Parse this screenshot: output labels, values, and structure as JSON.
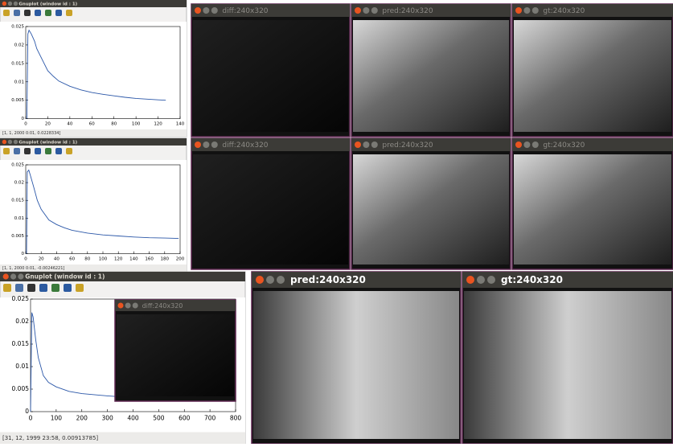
{
  "gnuplots": [
    {
      "title": "Gnuplot (window id : 1)",
      "status": "[1, 1, 2000 0:01, 0.0228334]",
      "chart": {
        "type": "line",
        "color": "#2b57a8",
        "x": [
          1,
          2,
          3,
          5,
          8,
          10,
          15,
          20,
          25,
          30,
          40,
          50,
          60,
          70,
          80,
          90,
          100,
          110,
          120,
          127
        ],
        "values": [
          0,
          0.023,
          0.024,
          0.023,
          0.021,
          0.019,
          0.016,
          0.013,
          0.0115,
          0.0102,
          0.0088,
          0.0078,
          0.0071,
          0.0066,
          0.0062,
          0.0058,
          0.0055,
          0.0053,
          0.0051,
          0.005
        ],
        "xlim": [
          0,
          140
        ],
        "xticks": [
          0,
          20,
          40,
          60,
          80,
          100,
          120,
          140
        ],
        "ylim": [
          0,
          0.025
        ],
        "yticks": [
          0,
          0.005,
          0.01,
          0.015,
          0.02,
          0.025
        ]
      }
    },
    {
      "title": "Gnuplot (window id : 1)",
      "status": "[1, 1, 2000 0:01, -0.00246221]",
      "chart": {
        "type": "line",
        "color": "#2b57a8",
        "x": [
          1,
          2,
          4,
          6,
          10,
          15,
          20,
          30,
          40,
          50,
          60,
          80,
          100,
          120,
          140,
          160,
          180,
          198
        ],
        "values": [
          0,
          0.023,
          0.0235,
          0.022,
          0.019,
          0.015,
          0.0125,
          0.0095,
          0.0082,
          0.0073,
          0.0066,
          0.0058,
          0.0053,
          0.005,
          0.0047,
          0.0045,
          0.0044,
          0.0043
        ],
        "xlim": [
          0,
          200
        ],
        "xticks": [
          0,
          20,
          40,
          60,
          80,
          100,
          120,
          140,
          160,
          180,
          200
        ],
        "ylim": [
          0,
          0.025
        ],
        "yticks": [
          0,
          0.005,
          0.01,
          0.015,
          0.02,
          0.025
        ]
      }
    },
    {
      "title": "Gnuplot (window id : 1)",
      "status": "[31, 12, 1999 23:58, 0.00913785]",
      "chart": {
        "type": "line",
        "color": "#2b57a8",
        "x": [
          0,
          5,
          10,
          20,
          30,
          50,
          70,
          100,
          150,
          200,
          300,
          400,
          500,
          600,
          700,
          710
        ],
        "values": [
          0,
          0.022,
          0.021,
          0.016,
          0.012,
          0.008,
          0.0065,
          0.0055,
          0.0045,
          0.004,
          0.0035,
          0.0031,
          0.0029,
          0.0027,
          0.0026,
          0.0026
        ],
        "xlim": [
          0,
          800
        ],
        "xticks": [
          0,
          100,
          200,
          300,
          400,
          500,
          600,
          700,
          800
        ],
        "ylim": [
          0,
          0.025
        ],
        "yticks": [
          0,
          0.005,
          0.01,
          0.015,
          0.02,
          0.025
        ]
      }
    }
  ],
  "image_windows": [
    {
      "title": "diff:240x320"
    },
    {
      "title": "pred:240x320"
    },
    {
      "title": "gt:240x320"
    },
    {
      "title": "diff:240x320"
    },
    {
      "title": "pred:240x320"
    },
    {
      "title": "gt:240x320"
    },
    {
      "title": "pred:240x320"
    },
    {
      "title": "gt:240x320"
    },
    {
      "title": "diff:240x320"
    }
  ]
}
